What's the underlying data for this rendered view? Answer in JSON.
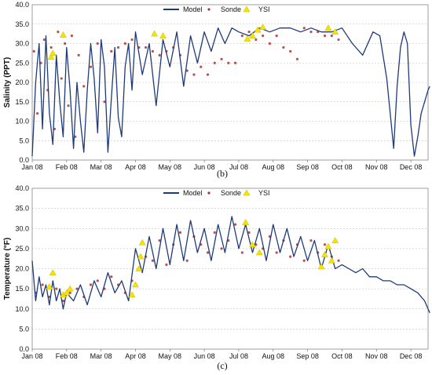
{
  "chart_data": [
    {
      "type": "line",
      "panel_label": "(b)",
      "title": "",
      "ylabel": "Salinity (PPT)",
      "xlabel": "",
      "ylim": [
        0,
        40
      ],
      "yticks": [
        "0.0",
        "5.0",
        "10.0",
        "15.0",
        "20.0",
        "25.0",
        "30.0",
        "35.0",
        "40.0"
      ],
      "categories": [
        "Jan 08",
        "Feb 08",
        "Mar 08",
        "Apr 08",
        "May 08",
        "Jun 08",
        "Jul 08",
        "Aug 08",
        "Sep 08",
        "Oct 08",
        "Nov 08",
        "Dec 08"
      ],
      "grid": true,
      "legend_position": "top-center",
      "legend": [
        "Model",
        "Sonde",
        "YSI"
      ],
      "colors": {
        "Model": "#1f3a7a",
        "Sonde": "#b03030",
        "YSI": "#f5e400"
      },
      "series": [
        {
          "name": "Model",
          "style": "line",
          "x": [
            0,
            0.1,
            0.2,
            0.3,
            0.4,
            0.5,
            0.6,
            0.7,
            0.8,
            0.9,
            1.0,
            1.1,
            1.2,
            1.3,
            1.4,
            1.5,
            1.6,
            1.7,
            1.8,
            1.9,
            2.0,
            2.1,
            2.2,
            2.3,
            2.4,
            2.5,
            2.6,
            2.7,
            2.8,
            2.9,
            3.0,
            3.2,
            3.4,
            3.6,
            3.8,
            4.0,
            4.2,
            4.4,
            4.6,
            4.8,
            5.0,
            5.2,
            5.4,
            5.6,
            5.8,
            6.0,
            6.3,
            6.6,
            6.9,
            7.2,
            7.5,
            7.8,
            8.1,
            8.4,
            8.7,
            9.0,
            9.3,
            9.6,
            9.9,
            10.1,
            10.3,
            10.5,
            10.6,
            10.7,
            10.8,
            10.9,
            11.0,
            11.1,
            11.2,
            11.3,
            11.4,
            11.5,
            11.55
          ],
          "y": [
            1,
            20,
            30,
            8,
            32,
            12,
            4,
            27,
            15,
            6,
            29,
            18,
            3,
            20,
            10,
            2,
            18,
            30,
            21,
            7,
            31,
            24,
            2,
            16,
            29,
            11,
            6,
            24,
            30,
            18,
            33,
            22,
            30,
            14,
            31,
            24,
            33,
            19,
            32,
            25,
            33,
            28,
            34,
            30,
            34,
            33,
            32,
            34,
            33,
            34,
            34,
            33,
            34,
            33,
            33,
            34,
            30,
            27,
            33,
            32,
            21,
            3,
            19,
            29,
            33,
            30,
            9,
            1,
            6,
            12,
            15,
            18,
            19
          ]
        },
        {
          "name": "Sonde",
          "style": "points",
          "x": [
            0.05,
            0.15,
            0.25,
            0.35,
            0.45,
            0.55,
            0.65,
            0.75,
            0.85,
            0.95,
            1.05,
            1.15,
            1.25,
            1.35,
            1.5,
            1.7,
            1.9,
            2.1,
            2.3,
            2.5,
            2.7,
            2.9,
            3.1,
            3.3,
            3.5,
            3.7,
            3.9,
            4.1,
            4.3,
            4.5,
            4.7,
            4.9,
            5.1,
            5.3,
            5.5,
            5.7,
            5.9,
            6.1,
            6.3,
            6.5,
            6.7,
            6.9,
            7.1,
            7.3,
            7.5,
            7.7,
            7.9,
            8.1,
            8.3,
            8.5,
            8.7,
            8.9
          ],
          "y": [
            28,
            12,
            25,
            31,
            18,
            29,
            8,
            33,
            21,
            30,
            14,
            32,
            6,
            27,
            19,
            24,
            30,
            15,
            28,
            29,
            30,
            31,
            29,
            29,
            28,
            27,
            28,
            29,
            27,
            23,
            22,
            24,
            22,
            25,
            26,
            25,
            25,
            32,
            33,
            31,
            32,
            30,
            32,
            29,
            28,
            26,
            34,
            33,
            33,
            32,
            32,
            31
          ]
        },
        {
          "name": "YSI",
          "style": "markers",
          "x": [
            0.55,
            0.6,
            0.9,
            3.55,
            3.8,
            6.25,
            6.4,
            6.55,
            6.7,
            8.6,
            8.8
          ],
          "y": [
            26.5,
            27.5,
            32.2,
            32.5,
            32.0,
            31.2,
            32.0,
            33.5,
            34.2,
            34.0,
            33.0
          ]
        }
      ]
    },
    {
      "type": "line",
      "panel_label": "(c)",
      "title": "",
      "ylabel": "Temperature (°F)",
      "xlabel": "",
      "ylim": [
        0,
        40
      ],
      "yticks": [
        "0.0",
        "5.0",
        "10.0",
        "15.0",
        "20.0",
        "25.0",
        "30.0",
        "35.0",
        "40.0"
      ],
      "categories": [
        "Jan 08",
        "Feb 08",
        "Mar 08",
        "Apr 08",
        "May 08",
        "Jun 08",
        "Jul 08",
        "Aug 08",
        "Sep 08",
        "Oct 08",
        "Nov 08",
        "Dec 08"
      ],
      "grid": true,
      "legend_position": "top-center",
      "legend": [
        "Model",
        "Sonde",
        "YSI"
      ],
      "colors": {
        "Model": "#1f3a7a",
        "Sonde": "#b03030",
        "YSI": "#f5e400"
      },
      "series": [
        {
          "name": "Model",
          "style": "line",
          "x": [
            0,
            0.1,
            0.2,
            0.3,
            0.4,
            0.5,
            0.6,
            0.7,
            0.8,
            0.9,
            1.0,
            1.2,
            1.4,
            1.6,
            1.8,
            2.0,
            2.2,
            2.4,
            2.6,
            2.8,
            3.0,
            3.2,
            3.4,
            3.6,
            3.8,
            4.0,
            4.2,
            4.4,
            4.6,
            4.8,
            5.0,
            5.2,
            5.4,
            5.6,
            5.8,
            6.0,
            6.2,
            6.4,
            6.6,
            6.8,
            7.0,
            7.2,
            7.4,
            7.6,
            7.8,
            8.0,
            8.2,
            8.4,
            8.6,
            8.8,
            9.0,
            9.2,
            9.4,
            9.6,
            9.8,
            10.0,
            10.2,
            10.4,
            10.6,
            10.8,
            11.0,
            11.2,
            11.4,
            11.55
          ],
          "y": [
            22,
            12,
            18,
            13,
            16,
            11,
            17,
            12,
            15,
            10,
            14,
            12,
            16,
            11,
            17,
            13,
            19,
            14,
            17,
            12,
            25,
            19,
            28,
            20,
            30,
            21,
            31,
            22,
            32,
            24,
            30,
            22,
            31,
            24,
            33,
            25,
            31,
            24,
            30,
            22,
            31,
            24,
            30,
            23,
            28,
            22,
            27,
            20,
            26,
            20,
            21,
            20,
            19,
            20,
            18,
            18,
            17,
            17,
            16,
            16,
            15,
            14,
            12,
            9
          ]
        },
        {
          "name": "Sonde",
          "style": "points",
          "x": [
            0.1,
            0.3,
            0.5,
            0.7,
            0.9,
            1.1,
            1.3,
            1.5,
            1.7,
            1.9,
            2.1,
            2.3,
            2.5,
            2.7,
            2.9,
            3.1,
            3.3,
            3.5,
            3.7,
            3.9,
            4.1,
            4.3,
            4.5,
            4.7,
            4.9,
            5.1,
            5.3,
            5.5,
            5.7,
            5.9,
            6.1,
            6.3,
            6.5,
            6.7,
            6.9,
            7.1,
            7.3,
            7.5,
            7.7,
            7.9,
            8.1,
            8.3,
            8.5,
            8.7,
            8.9
          ],
          "y": [
            14,
            16,
            13,
            15,
            12,
            14,
            15,
            13,
            16,
            17,
            15,
            18,
            16,
            14,
            17,
            20,
            23,
            22,
            27,
            21,
            26,
            29,
            22,
            28,
            26,
            24,
            29,
            25,
            27,
            31,
            24,
            29,
            26,
            25,
            28,
            24,
            27,
            23,
            26,
            22,
            27,
            24,
            26,
            23,
            22
          ]
        },
        {
          "name": "YSI",
          "style": "markers",
          "x": [
            0.5,
            0.6,
            0.9,
            1.0,
            1.1,
            2.9,
            3.0,
            3.1,
            3.15,
            3.2,
            6.2,
            6.4,
            6.6,
            8.4,
            8.5,
            8.6,
            8.7,
            8.8
          ],
          "y": [
            15.5,
            19.0,
            13.5,
            14.0,
            15.0,
            13.5,
            16.0,
            20.0,
            23.0,
            26.5,
            31.5,
            26.0,
            24.0,
            20.5,
            23.5,
            25.5,
            22.0,
            27.0
          ]
        }
      ]
    }
  ]
}
